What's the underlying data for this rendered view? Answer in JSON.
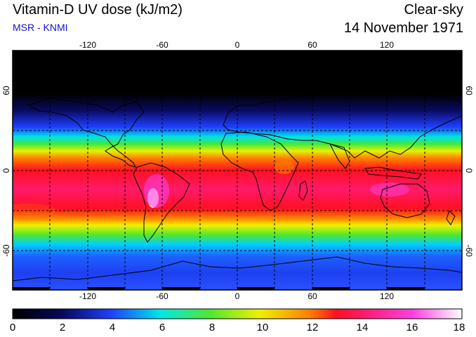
{
  "header": {
    "title": "Vitamin-D UV dose (kJ/m2)",
    "subtitle": "MSR - KNMI",
    "condition": "Clear-sky",
    "date": "14 November 1971"
  },
  "map": {
    "projection": "equirectangular",
    "lon_range": [
      -180,
      180
    ],
    "lat_range": [
      -90,
      90
    ],
    "lon_ticks": [
      "-120",
      "-60",
      "0",
      "60",
      "120"
    ],
    "lat_ticks": [
      "60",
      "0",
      "-60"
    ],
    "gridlines": "dashed every 30 degrees",
    "colors": {
      "dose_0": "#000000",
      "dose_2": "#08085a",
      "dose_4": "#1e40ff",
      "dose_6": "#00e8e8",
      "dose_8": "#50e830",
      "dose_10": "#f0f000",
      "dose_12": "#ff8000",
      "dose_13": "#ff1020",
      "dose_14": "#ff1a6a",
      "dose_16": "#ff40e0",
      "dose_18": "#ffffff"
    }
  },
  "colorbar": {
    "ticks": [
      "0",
      "2",
      "4",
      "6",
      "8",
      "10",
      "12",
      "14",
      "16",
      "18"
    ]
  }
}
